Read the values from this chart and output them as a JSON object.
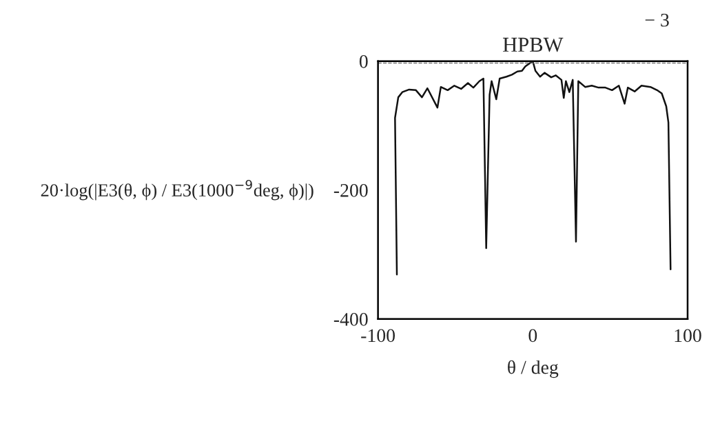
{
  "chart_data": {
    "type": "line",
    "title": "HPBW",
    "xlabel": "θ / deg",
    "ylabel": "20·log(|E3(θ, ϕ) / E3(1000$^{−9}$deg, ϕ)|)",
    "annotations": [
      "− 3"
    ],
    "series": [
      {
        "color": "#111111",
        "x": [
          -87.8,
          -89,
          -86.9,
          -84.3,
          -79.9,
          -75.5,
          -71.6,
          -68.1,
          -61.6,
          -59.4,
          -55,
          -50.7,
          -46.3,
          -41.9,
          -38.4,
          -34.5,
          -31.9,
          -30.1,
          -27.9,
          -26.6,
          -23.6,
          -21.4,
          -17,
          -13.5,
          -10,
          -7,
          -4.8,
          0,
          1.7,
          4.7,
          7.6,
          11.9,
          14.8,
          18.5,
          20,
          21.4,
          23.6,
          25.8,
          27.9,
          29.4,
          33.8,
          38.1,
          42.5,
          46.9,
          51.2,
          55.6,
          59.3,
          61.4,
          65.8,
          70.2,
          76,
          80.3,
          83.3,
          86.2,
          87.6,
          89
        ],
        "values": [
          -331,
          -88,
          -56,
          -48,
          -44,
          -45,
          -56,
          -42,
          -72,
          -40,
          -45,
          -38,
          -43,
          -34,
          -41,
          -31,
          -27,
          -290,
          -52,
          -31,
          -59,
          -27,
          -24,
          -21,
          -16,
          -15,
          -8,
          0,
          -15,
          -24,
          -18,
          -25,
          -22,
          -29,
          -57,
          -31,
          -48,
          -29,
          -280,
          -31,
          -40,
          -38,
          -41,
          -41,
          -45,
          -38,
          -66,
          -41,
          -47,
          -38,
          -40,
          -45,
          -50,
          -70,
          -95,
          -323
        ]
      }
    ],
    "ref_lines": [
      {
        "axis": "y",
        "value": -3,
        "color": "#777777",
        "line_style": "dashed"
      }
    ],
    "xlim": [
      -100,
      100
    ],
    "xticks": [
      -100,
      0,
      100
    ],
    "ylim": [
      -400,
      0
    ],
    "yticks": [
      -400,
      -200,
      0
    ],
    "grid": false,
    "legend": false,
    "marker": "none",
    "line_style": "solid"
  }
}
